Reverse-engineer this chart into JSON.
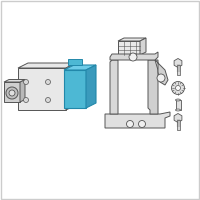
{
  "background_color": "#ffffff",
  "border_color": "#cccccc",
  "fig_size": [
    2.0,
    2.0
  ],
  "dpi": 100,
  "line_color": "#555555",
  "highlight_color": "#4db8d4",
  "highlight_color2": "#2288aa",
  "shadow_color": "#aaaaaa",
  "light_gray": "#cccccc",
  "mid_gray": "#999999",
  "dark_gray": "#666666"
}
